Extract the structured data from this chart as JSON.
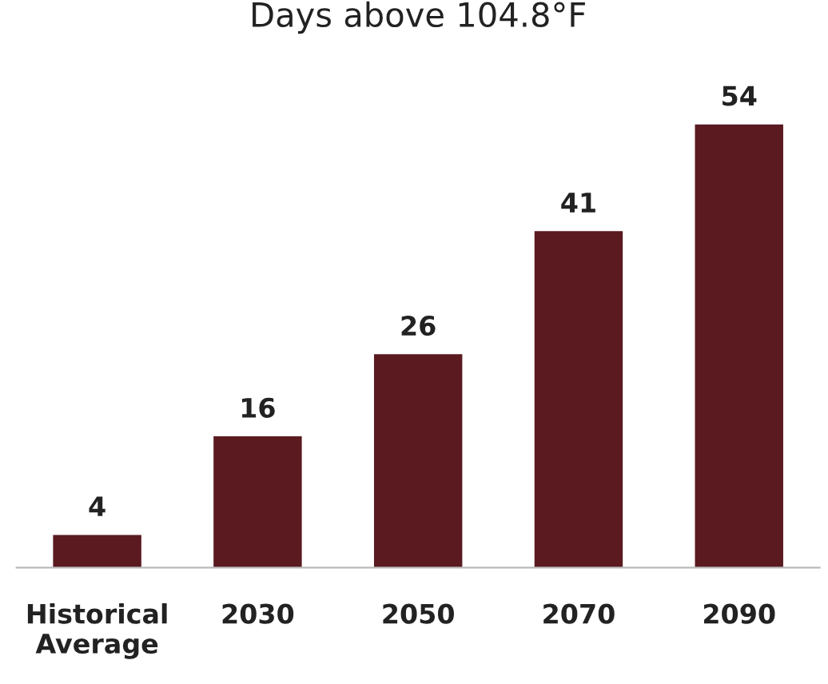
{
  "chart_data": {
    "type": "bar",
    "title": "Days above 104.8°F",
    "categories": [
      "Historical\nAverage",
      "2030",
      "2050",
      "2070",
      "2090"
    ],
    "values": [
      4,
      16,
      26,
      41,
      54
    ],
    "color": "#5a1a20",
    "data_labels": true,
    "grid": false
  }
}
